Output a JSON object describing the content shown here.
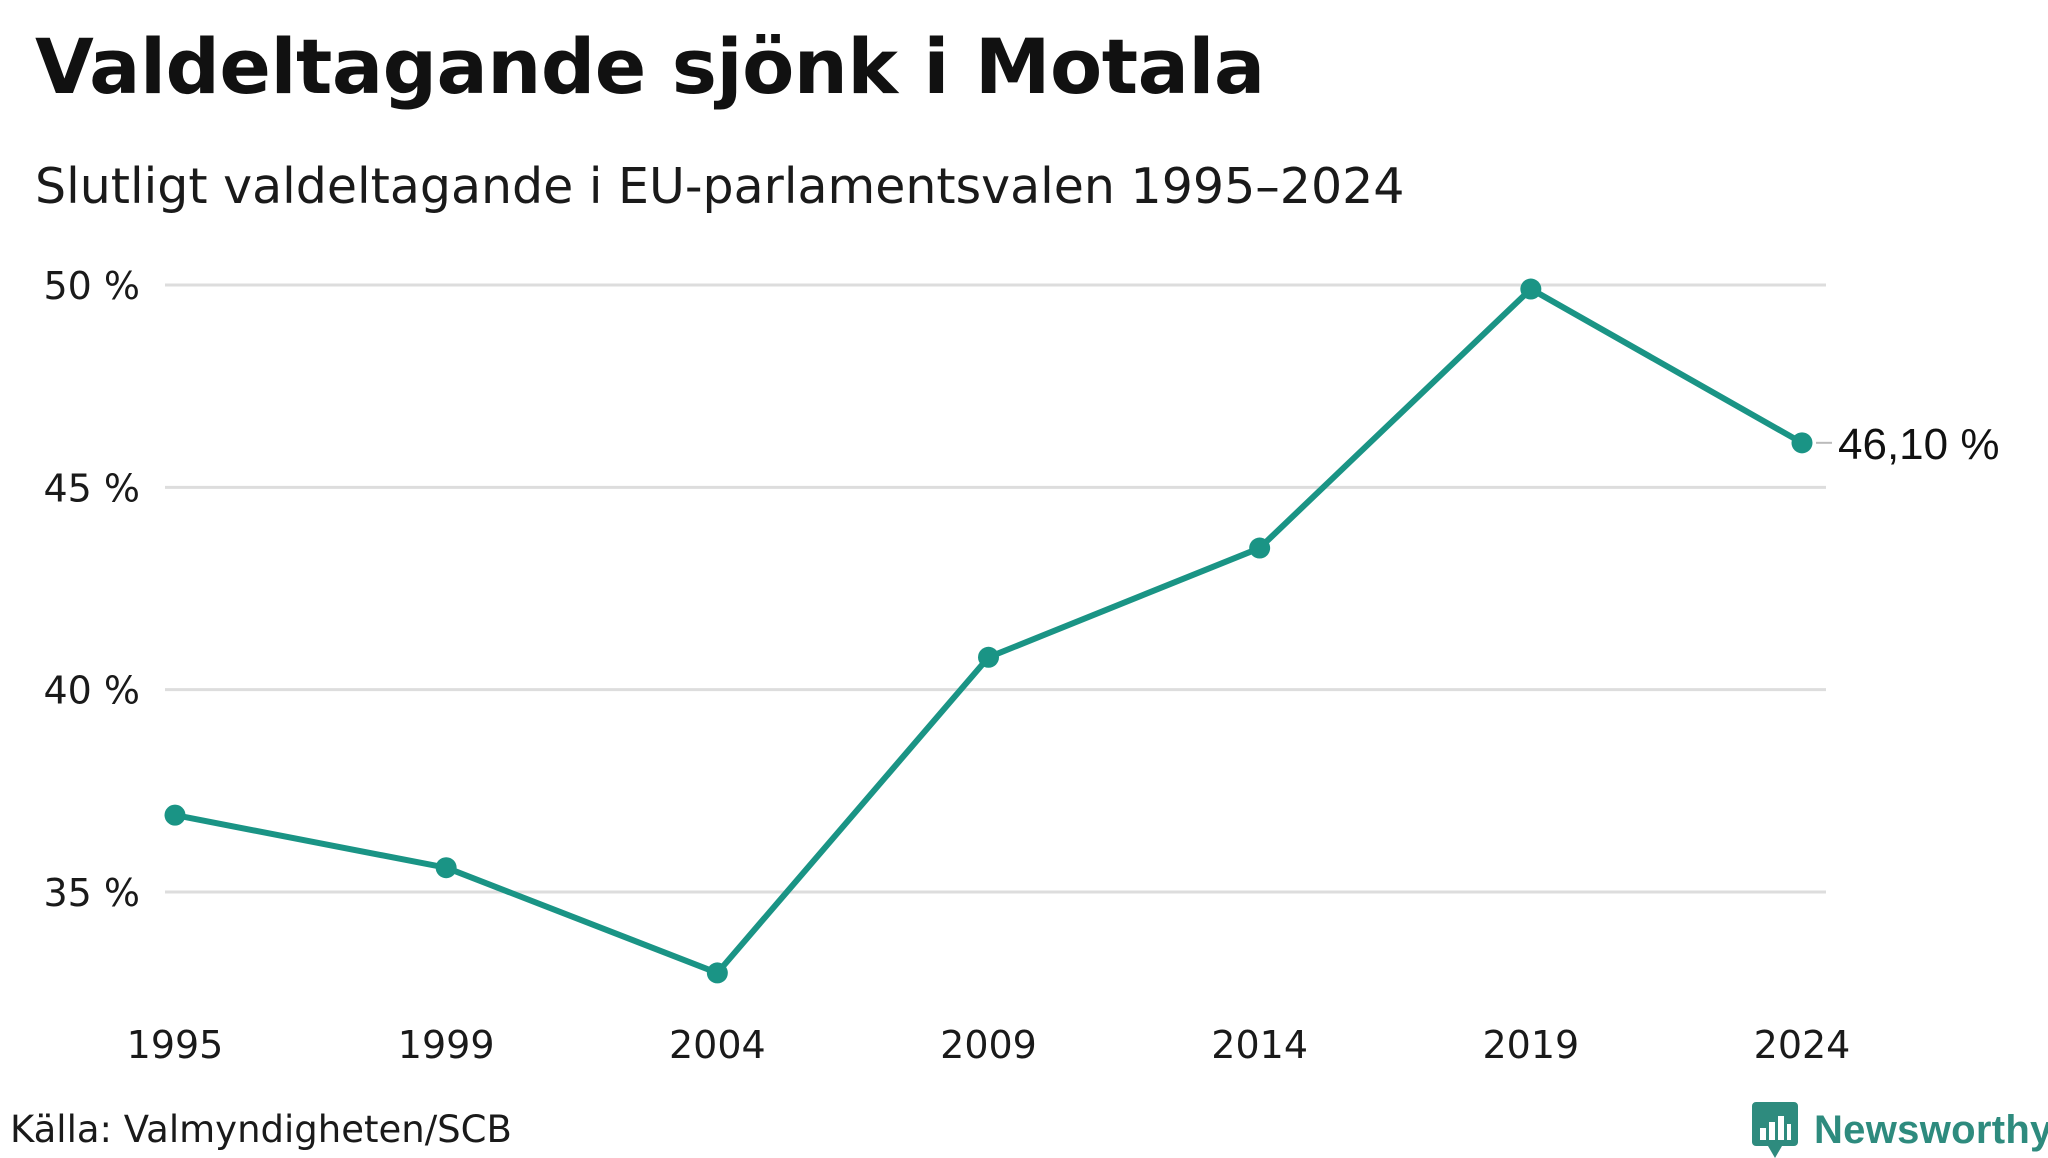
{
  "header": {
    "title": "Valdeltagande sjönk i Motala",
    "subtitle": "Slutligt valdeltagande i EU-parlamentsvalen 1995–2024"
  },
  "footer": {
    "source": "Källa: Valmyndigheten/SCB",
    "brand": "Newsworthy"
  },
  "colors": {
    "line": "#1a9485",
    "grid": "#dddddd",
    "brand": "#2e8b7e"
  },
  "icons": {
    "brand": "newsworthy-logo-icon"
  },
  "chart_data": {
    "type": "line",
    "title": "Valdeltagande sjönk i Motala",
    "subtitle": "Slutligt valdeltagande i EU-parlamentsvalen 1995–2024",
    "x": [
      "1995",
      "1999",
      "2004",
      "2009",
      "2014",
      "2019",
      "2024"
    ],
    "series": [
      {
        "values": [
          36.9,
          35.6,
          33.0,
          40.8,
          43.5,
          49.9,
          46.1
        ]
      }
    ],
    "yticks": [
      {
        "value": 35,
        "label": "35 %"
      },
      {
        "value": 40,
        "label": "40 %"
      },
      {
        "value": 45,
        "label": "45 %"
      },
      {
        "value": 50,
        "label": "50 %"
      }
    ],
    "ylim": [
      32,
      50.5
    ],
    "grid": true,
    "end_label": "46,10 %",
    "xlabel": "",
    "ylabel": ""
  }
}
